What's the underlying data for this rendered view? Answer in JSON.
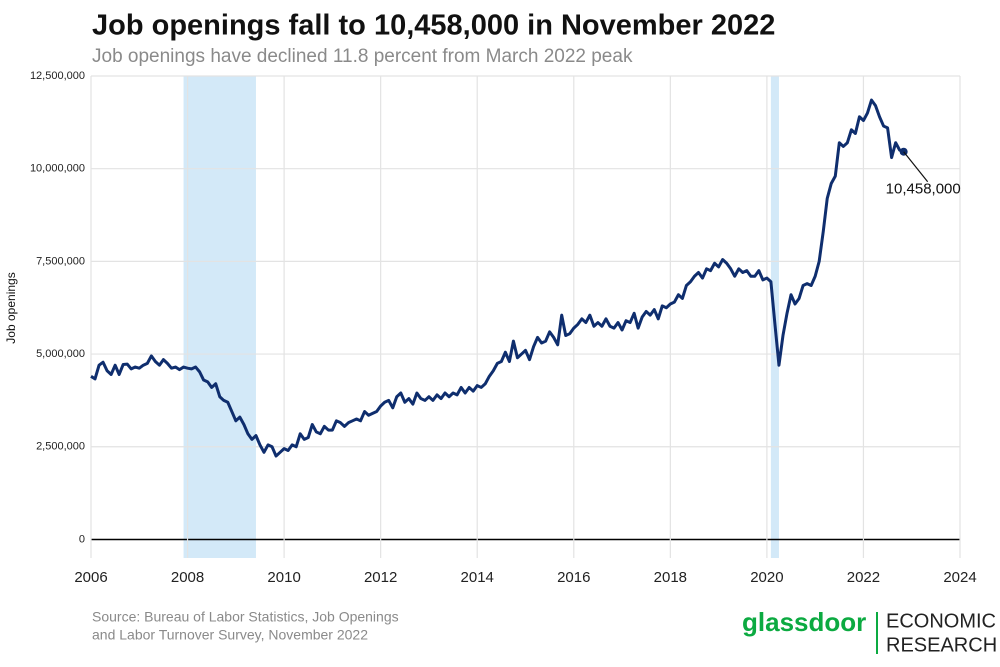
{
  "chart_data": {
    "type": "line",
    "title": "Job openings fall to 10,458,000 in November 2022",
    "subtitle": "Job openings have declined 11.8 percent from March 2022 peak",
    "y_label": "Job openings",
    "source": "Source: Bureau of Labor Statistics, Job Openings",
    "source2": "and Labor Turnover Survey, November 2022",
    "logo": "glassdoor",
    "logo_line1": "ECONOMIC",
    "logo_line2": "RESEARCH",
    "annotation": "10,458,000",
    "xlim": [
      2006,
      2024
    ],
    "xticks": [
      2006,
      2008,
      2010,
      2012,
      2014,
      2016,
      2018,
      2020,
      2022,
      2024
    ],
    "ylim": [
      -500000,
      12500000
    ],
    "yticks": [
      0,
      {
        "value": 2500000,
        "label": "2,500,000"
      },
      {
        "value": 5000000,
        "label": "5,000,000"
      },
      {
        "value": 7500000,
        "label": "7,500,000"
      },
      {
        "value": 10000000,
        "label": "10,000,000"
      },
      {
        "value": 12500000,
        "label": "12,500,000"
      }
    ],
    "grid": true,
    "recessions": [
      [
        2007.917,
        2009.417
      ],
      [
        2020.083,
        2020.25
      ]
    ],
    "recession_color": "#d3e9f8",
    "x": [
      2006.0,
      2006.083,
      2006.167,
      2006.25,
      2006.333,
      2006.417,
      2006.5,
      2006.583,
      2006.667,
      2006.75,
      2006.833,
      2006.917,
      2007.0,
      2007.083,
      2007.167,
      2007.25,
      2007.333,
      2007.417,
      2007.5,
      2007.583,
      2007.667,
      2007.75,
      2007.833,
      2007.917,
      2008.0,
      2008.083,
      2008.167,
      2008.25,
      2008.333,
      2008.417,
      2008.5,
      2008.583,
      2008.667,
      2008.75,
      2008.833,
      2008.917,
      2009.0,
      2009.083,
      2009.167,
      2009.25,
      2009.333,
      2009.417,
      2009.5,
      2009.583,
      2009.667,
      2009.75,
      2009.833,
      2009.917,
      2010.0,
      2010.083,
      2010.167,
      2010.25,
      2010.333,
      2010.417,
      2010.5,
      2010.583,
      2010.667,
      2010.75,
      2010.833,
      2010.917,
      2011.0,
      2011.083,
      2011.167,
      2011.25,
      2011.333,
      2011.417,
      2011.5,
      2011.583,
      2011.667,
      2011.75,
      2011.833,
      2011.917,
      2012.0,
      2012.083,
      2012.167,
      2012.25,
      2012.333,
      2012.417,
      2012.5,
      2012.583,
      2012.667,
      2012.75,
      2012.833,
      2012.917,
      2013.0,
      2013.083,
      2013.167,
      2013.25,
      2013.333,
      2013.417,
      2013.5,
      2013.583,
      2013.667,
      2013.75,
      2013.833,
      2013.917,
      2014.0,
      2014.083,
      2014.167,
      2014.25,
      2014.333,
      2014.417,
      2014.5,
      2014.583,
      2014.667,
      2014.75,
      2014.833,
      2014.917,
      2015.0,
      2015.083,
      2015.167,
      2015.25,
      2015.333,
      2015.417,
      2015.5,
      2015.583,
      2015.667,
      2015.75,
      2015.833,
      2015.917,
      2016.0,
      2016.083,
      2016.167,
      2016.25,
      2016.333,
      2016.417,
      2016.5,
      2016.583,
      2016.667,
      2016.75,
      2016.833,
      2016.917,
      2017.0,
      2017.083,
      2017.167,
      2017.25,
      2017.333,
      2017.417,
      2017.5,
      2017.583,
      2017.667,
      2017.75,
      2017.833,
      2017.917,
      2018.0,
      2018.083,
      2018.167,
      2018.25,
      2018.333,
      2018.417,
      2018.5,
      2018.583,
      2018.667,
      2018.75,
      2018.833,
      2018.917,
      2019.0,
      2019.083,
      2019.167,
      2019.25,
      2019.333,
      2019.417,
      2019.5,
      2019.583,
      2019.667,
      2019.75,
      2019.833,
      2019.917,
      2020.0,
      2020.083,
      2020.167,
      2020.25,
      2020.333,
      2020.417,
      2020.5,
      2020.583,
      2020.667,
      2020.75,
      2020.833,
      2020.917,
      2021.0,
      2021.083,
      2021.167,
      2021.25,
      2021.333,
      2021.417,
      2021.5,
      2021.583,
      2021.667,
      2021.75,
      2021.833,
      2021.917,
      2022.0,
      2022.083,
      2022.167,
      2022.25,
      2022.333,
      2022.417,
      2022.5,
      2022.583,
      2022.667,
      2022.75,
      2022.833
    ],
    "series": [
      {
        "name": "Job openings",
        "color": "#0f2e6e",
        "values": [
          4400000,
          4330000,
          4700000,
          4780000,
          4550000,
          4450000,
          4700000,
          4450000,
          4720000,
          4730000,
          4600000,
          4650000,
          4620000,
          4700000,
          4750000,
          4950000,
          4800000,
          4700000,
          4850000,
          4750000,
          4620000,
          4650000,
          4580000,
          4650000,
          4620000,
          4600000,
          4650000,
          4520000,
          4300000,
          4250000,
          4100000,
          4200000,
          3850000,
          3750000,
          3700000,
          3450000,
          3200000,
          3300000,
          3100000,
          2850000,
          2700000,
          2800000,
          2550000,
          2350000,
          2550000,
          2500000,
          2250000,
          2350000,
          2450000,
          2400000,
          2550000,
          2500000,
          2850000,
          2700000,
          2750000,
          3100000,
          2900000,
          2850000,
          3050000,
          2950000,
          2950000,
          3200000,
          3150000,
          3050000,
          3150000,
          3200000,
          3250000,
          3200000,
          3450000,
          3350000,
          3400000,
          3450000,
          3600000,
          3700000,
          3750000,
          3550000,
          3850000,
          3950000,
          3700000,
          3800000,
          3650000,
          3950000,
          3800000,
          3750000,
          3850000,
          3750000,
          3900000,
          3800000,
          3950000,
          3850000,
          3950000,
          3900000,
          4100000,
          3950000,
          4100000,
          4000000,
          4150000,
          4100000,
          4200000,
          4400000,
          4550000,
          4750000,
          4800000,
          5050000,
          4800000,
          5350000,
          4900000,
          5000000,
          5100000,
          4850000,
          5200000,
          5450000,
          5300000,
          5350000,
          5600000,
          5450000,
          5250000,
          6050000,
          5500000,
          5550000,
          5700000,
          5800000,
          5950000,
          5850000,
          6050000,
          5750000,
          5850000,
          5750000,
          5950000,
          5750000,
          5700000,
          5850000,
          5650000,
          5900000,
          5850000,
          6100000,
          5700000,
          6000000,
          6150000,
          6050000,
          6200000,
          5950000,
          6300000,
          6250000,
          6350000,
          6400000,
          6600000,
          6500000,
          6850000,
          6950000,
          7100000,
          7200000,
          7050000,
          7300000,
          7250000,
          7450000,
          7350000,
          7550000,
          7450000,
          7300000,
          7100000,
          7300000,
          7200000,
          7250000,
          7100000,
          7100000,
          7250000,
          7000000,
          7050000,
          6950000,
          5800000,
          4700000,
          5500000,
          6100000,
          6600000,
          6350000,
          6500000,
          6850000,
          6900000,
          6850000,
          7100000,
          7500000,
          8300000,
          9200000,
          9600000,
          9800000,
          10700000,
          10600000,
          10700000,
          11050000,
          10950000,
          11400000,
          11300000,
          11500000,
          11850000,
          11700000,
          11400000,
          11150000,
          11100000,
          10300000,
          10700000,
          10500000,
          10458000
        ]
      }
    ]
  }
}
